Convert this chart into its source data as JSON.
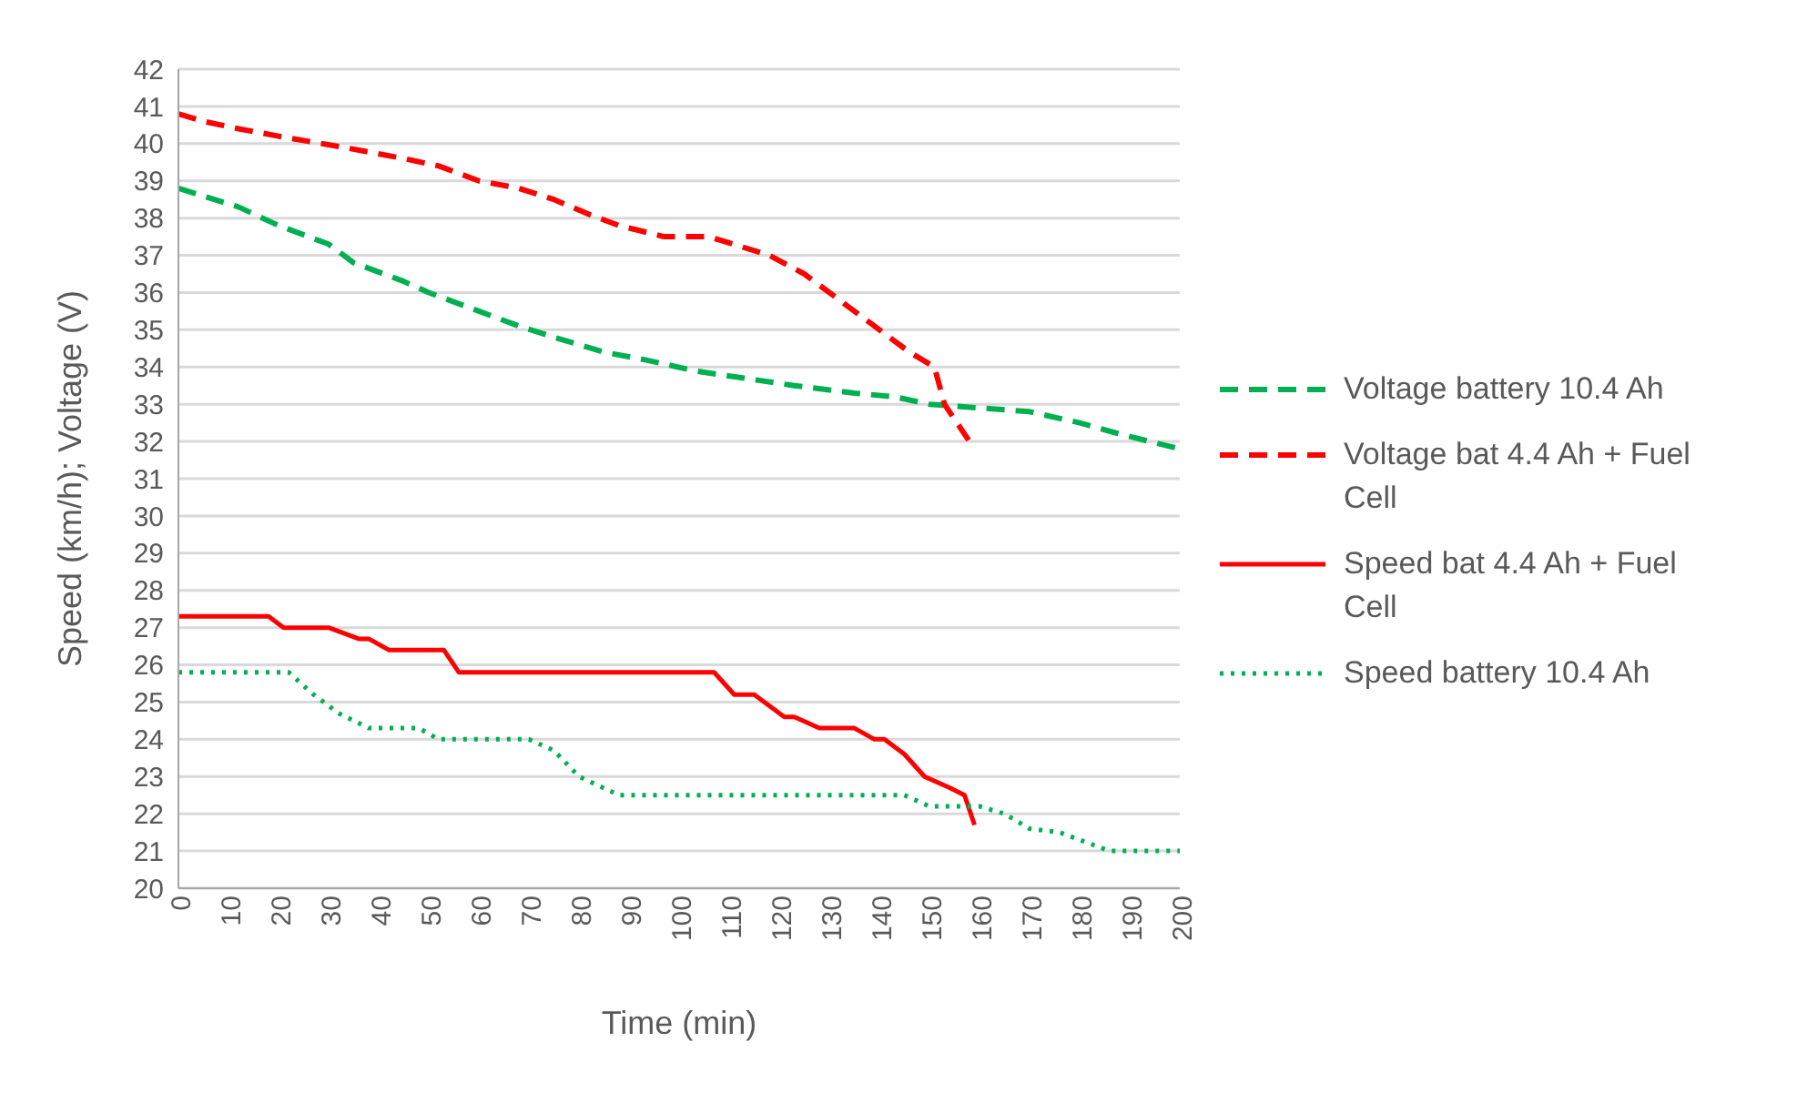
{
  "chart_data": {
    "type": "line",
    "xlabel": "Time (min)",
    "ylabel": "Speed (km/h); Voltage (V)",
    "xlim": [
      0,
      200
    ],
    "xticks": [
      0,
      10,
      20,
      30,
      40,
      50,
      60,
      70,
      80,
      90,
      100,
      110,
      120,
      130,
      140,
      150,
      160,
      170,
      180,
      190,
      200
    ],
    "ylim": [
      20,
      42
    ],
    "yticks": [
      20,
      21,
      22,
      23,
      24,
      25,
      26,
      27,
      28,
      29,
      30,
      31,
      32,
      33,
      34,
      35,
      36,
      37,
      38,
      39,
      40,
      41,
      42
    ],
    "grid": "y",
    "legend": "right",
    "marker": "none",
    "series": [
      {
        "name": "Voltage battery 10.4 Ah",
        "color": "#00b050",
        "line_style": "dashed",
        "x": [
          0,
          12,
          20,
          30,
          35,
          45,
          50,
          60,
          68,
          75,
          85,
          93,
          103,
          113,
          123,
          135,
          143,
          150,
          160,
          170,
          180,
          188,
          200
        ],
        "values": [
          38.8,
          38.3,
          37.8,
          37.3,
          36.8,
          36.3,
          36,
          35.5,
          35.1,
          34.8,
          34.4,
          34.2,
          33.9,
          33.7,
          33.5,
          33.3,
          33.2,
          33,
          32.9,
          32.8,
          32.5,
          32.2,
          31.8
        ]
      },
      {
        "name": "Voltage bat 4.4 Ah + Fuel Cell",
        "color": "#ff0000",
        "line_style": "dashed",
        "x": [
          0,
          5,
          12,
          20,
          33,
          45,
          52,
          60,
          68,
          75,
          82,
          88,
          97,
          106,
          118,
          125,
          132,
          140,
          146,
          151,
          153,
          158
        ],
        "values": [
          40.8,
          40.6,
          40.4,
          40.2,
          39.9,
          39.6,
          39.4,
          39,
          38.8,
          38.5,
          38.1,
          37.8,
          37.5,
          37.5,
          37,
          36.5,
          35.8,
          35,
          34.4,
          34,
          33,
          32
        ]
      },
      {
        "name": "Speed bat 4.4 Ah + Fuel Cell",
        "color": "#ff0000",
        "line_style": "solid",
        "x": [
          0,
          18,
          21,
          30,
          36,
          38,
          42,
          53,
          56,
          107,
          111,
          115,
          121,
          123,
          128,
          135,
          139,
          141,
          145,
          149,
          154,
          157,
          159
        ],
        "values": [
          27.3,
          27.3,
          27,
          27,
          26.7,
          26.7,
          26.4,
          26.4,
          25.8,
          25.8,
          25.2,
          25.2,
          24.6,
          24.6,
          24.3,
          24.3,
          24,
          24,
          23.6,
          23,
          22.7,
          22.5,
          21.7
        ]
      },
      {
        "name": "Speed battery 10.4 Ah",
        "color": "#00b050",
        "line_style": "dotted",
        "x": [
          0,
          22,
          27,
          32,
          38,
          48,
          52,
          70,
          75,
          80,
          88,
          145,
          150,
          160,
          165,
          170,
          176,
          186,
          200
        ],
        "values": [
          25.8,
          25.8,
          25.2,
          24.7,
          24.3,
          24.3,
          24,
          24,
          23.7,
          23,
          22.5,
          22.5,
          22.2,
          22.2,
          22,
          21.6,
          21.5,
          21,
          21
        ]
      }
    ]
  }
}
